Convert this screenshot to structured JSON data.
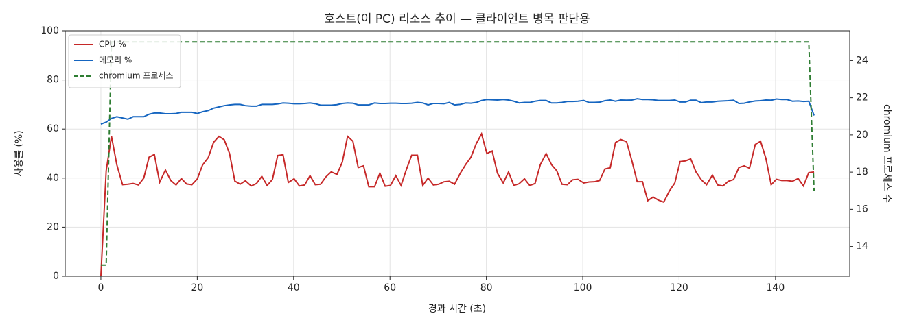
{
  "chart_data": {
    "type": "line",
    "title": "호스트(이 PC) 리소스 추이 — 클라이언트 병목 판단용",
    "xlabel": "경과 시간 (초)",
    "ylabel": "사용률 (%)",
    "y2label": "chromium 프로세스 수",
    "grid": true,
    "legend": "upper left",
    "xlim": [
      -7.4,
      155.4
    ],
    "xticks": [
      0,
      20,
      40,
      60,
      80,
      100,
      120,
      140
    ],
    "ylim": [
      0,
      100
    ],
    "yticks": [
      0,
      20,
      40,
      60,
      80,
      100
    ],
    "y2lim": [
      12.4,
      25.6
    ],
    "y2ticks": [
      14,
      16,
      18,
      20,
      22,
      24
    ],
    "x": [
      0,
      1.1,
      2.2,
      3.3,
      4.5,
      5.6,
      6.7,
      7.8,
      8.9,
      10.0,
      11.1,
      12.2,
      13.4,
      14.5,
      15.6,
      16.7,
      17.8,
      18.9,
      20.0,
      21.1,
      22.3,
      23.4,
      24.5,
      25.6,
      26.7,
      27.8,
      28.9,
      30.0,
      31.2,
      32.3,
      33.4,
      34.5,
      35.6,
      36.7,
      37.8,
      38.9,
      40.1,
      41.2,
      42.3,
      43.4,
      44.5,
      45.6,
      46.7,
      47.8,
      49.0,
      50.1,
      51.2,
      52.3,
      53.4,
      54.5,
      55.6,
      56.8,
      57.9,
      59.0,
      60.1,
      61.2,
      62.3,
      63.4,
      64.5,
      65.7,
      66.8,
      67.9,
      69.0,
      70.1,
      71.2,
      72.3,
      73.4,
      74.6,
      75.7,
      76.8,
      77.9,
      79.0,
      80.1,
      81.2,
      82.3,
      83.5,
      84.6,
      85.7,
      86.8,
      87.9,
      89.0,
      90.1,
      91.2,
      92.4,
      93.5,
      94.6,
      95.7,
      96.8,
      97.9,
      99.0,
      100.2,
      101.3,
      102.4,
      103.5,
      104.6,
      105.7,
      106.8,
      107.9,
      109.1,
      110.2,
      111.3,
      112.4,
      113.5,
      114.6,
      115.7,
      116.8,
      118.0,
      119.1,
      120.2,
      121.3,
      122.4,
      123.5,
      124.6,
      125.7,
      126.9,
      128.0,
      129.1,
      130.2,
      131.3,
      132.4,
      133.5,
      134.6,
      135.8,
      136.9,
      138.0,
      139.1,
      140.2,
      141.3,
      142.4,
      143.5,
      144.7,
      145.8,
      146.9,
      148.0
    ],
    "series": [
      {
        "name": "CPU %",
        "color": "#c62828",
        "style": "solid",
        "values": [
          0,
          43,
          57,
          45.5,
          37.3,
          37.5,
          37.8,
          37.2,
          40,
          48.5,
          49.6,
          38.3,
          43.3,
          39,
          37.2,
          39.8,
          37.6,
          37.3,
          39.6,
          45.3,
          48.4,
          54.6,
          57,
          55.6,
          50,
          38.8,
          37.5,
          38.9,
          36.8,
          37.8,
          40.7,
          37,
          39.4,
          49.2,
          49.5,
          38.2,
          39.7,
          36.8,
          37.2,
          41,
          37.3,
          37.5,
          40.5,
          42.5,
          41.5,
          46.5,
          57,
          55,
          44.3,
          45,
          36.5,
          36.5,
          42,
          36.7,
          37,
          41,
          37,
          43.5,
          49.3,
          49.3,
          37,
          40,
          37.2,
          37.5,
          38.5,
          38.7,
          37.5,
          42,
          45.5,
          48.5,
          54,
          58,
          50,
          51,
          42,
          38,
          42.5,
          37,
          37.7,
          39.7,
          37,
          37.8,
          45.5,
          50,
          45.5,
          43,
          37.5,
          37.3,
          39.3,
          39.5,
          38,
          38.4,
          38.5,
          39,
          43.7,
          44.2,
          54.5,
          55.7,
          54.8,
          47,
          38.5,
          38.5,
          30.8,
          32.3,
          31,
          30.2,
          34.8,
          38,
          46.7,
          47,
          47.8,
          42.5,
          39.3,
          37.3,
          41.2,
          37.2,
          36.8,
          38.7,
          39.4,
          44.3,
          45,
          44,
          53.7,
          55,
          48,
          37.3,
          39.5,
          39,
          39,
          38.7,
          39.8,
          36.8,
          42.2,
          42.5
        ]
      },
      {
        "name": "메모리 %",
        "color": "#1565c0",
        "style": "solid",
        "values": [
          62,
          62.8,
          64.3,
          65,
          64.5,
          64,
          65,
          65,
          65,
          66,
          66.5,
          66.5,
          66.2,
          66.2,
          66.3,
          66.8,
          66.8,
          66.8,
          66.3,
          67,
          67.5,
          68.5,
          69,
          69.5,
          69.8,
          70,
          70,
          69.5,
          69.3,
          69.3,
          70,
          70,
          70,
          70.2,
          70.6,
          70.5,
          70.3,
          70.3,
          70.4,
          70.6,
          70.3,
          69.7,
          69.7,
          69.7,
          69.9,
          70.4,
          70.6,
          70.5,
          69.8,
          69.8,
          69.8,
          70.6,
          70.4,
          70.4,
          70.5,
          70.5,
          70.4,
          70.4,
          70.5,
          70.8,
          70.6,
          69.8,
          70.4,
          70.4,
          70.3,
          70.8,
          69.8,
          70,
          70.6,
          70.5,
          70.8,
          71.6,
          72,
          71.9,
          71.8,
          72,
          71.8,
          71.3,
          70.6,
          70.8,
          70.8,
          71.3,
          71.6,
          71.6,
          70.6,
          70.6,
          70.8,
          71.2,
          71.2,
          71.3,
          71.6,
          70.8,
          70.8,
          70.9,
          71.5,
          71.8,
          71.3,
          71.8,
          71.7,
          71.8,
          72.3,
          72,
          72,
          71.9,
          71.6,
          71.6,
          71.6,
          71.8,
          71,
          71,
          71.7,
          71.7,
          70.7,
          71,
          71,
          71.3,
          71.4,
          71.5,
          71.7,
          70.4,
          70.5,
          71,
          71.4,
          71.5,
          71.8,
          71.7,
          72.2,
          72,
          72,
          71.3,
          71.4,
          71.2,
          71.3,
          65.5
        ]
      },
      {
        "name": "chromium 프로세스",
        "color": "#2e7d32",
        "style": "dashed",
        "axis": "y2",
        "values": [
          13,
          13,
          25,
          25,
          25,
          25,
          25,
          25,
          25,
          25,
          25,
          25,
          25,
          25,
          25,
          25,
          25,
          25,
          25,
          25,
          25,
          25,
          25,
          25,
          25,
          25,
          25,
          25,
          25,
          25,
          25,
          25,
          25,
          25,
          25,
          25,
          25,
          25,
          25,
          25,
          25,
          25,
          25,
          25,
          25,
          25,
          25,
          25,
          25,
          25,
          25,
          25,
          25,
          25,
          25,
          25,
          25,
          25,
          25,
          25,
          25,
          25,
          25,
          25,
          25,
          25,
          25,
          25,
          25,
          25,
          25,
          25,
          25,
          25,
          25,
          25,
          25,
          25,
          25,
          25,
          25,
          25,
          25,
          25,
          25,
          25,
          25,
          25,
          25,
          25,
          25,
          25,
          25,
          25,
          25,
          25,
          25,
          25,
          25,
          25,
          25,
          25,
          25,
          25,
          25,
          25,
          25,
          25,
          25,
          25,
          25,
          25,
          25,
          25,
          25,
          25,
          25,
          25,
          25,
          25,
          25,
          25,
          25,
          25,
          25,
          25,
          25,
          25,
          25,
          25,
          25,
          25,
          25,
          17
        ]
      }
    ]
  }
}
